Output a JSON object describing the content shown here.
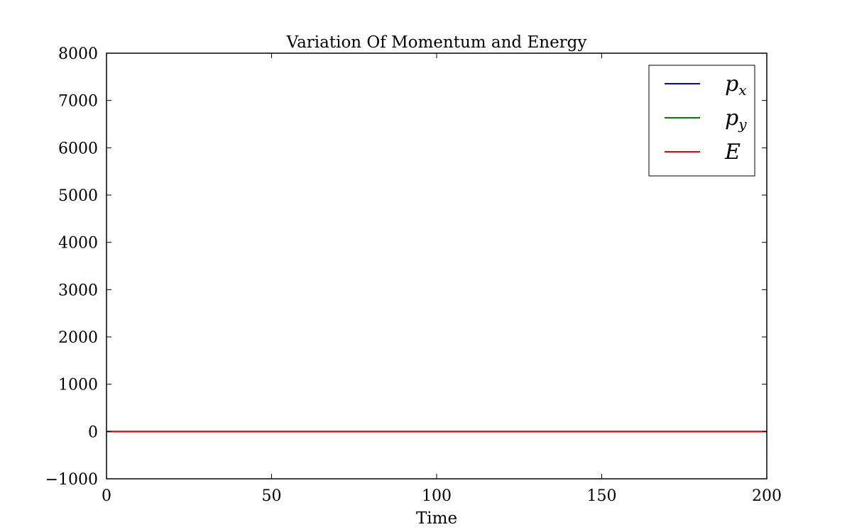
{
  "chart_data": {
    "type": "line",
    "title": "Variation Of Momentum and Energy",
    "xlabel": "Time",
    "ylabel": "",
    "xlim": [
      0,
      200
    ],
    "ylim": [
      -1000,
      8000
    ],
    "xticks": [
      0,
      50,
      100,
      150,
      200
    ],
    "xtick_labels": [
      "0",
      "50",
      "100",
      "150",
      "200"
    ],
    "yticks": [
      -1000,
      0,
      1000,
      2000,
      3000,
      4000,
      5000,
      6000,
      7000,
      8000
    ],
    "ytick_labels": [
      "−1000",
      "0",
      "1000",
      "2000",
      "3000",
      "4000",
      "5000",
      "6000",
      "7000",
      "8000"
    ],
    "grid": false,
    "legend_position": "top-right",
    "x": [
      0,
      200
    ],
    "series": [
      {
        "name": "p",
        "name_sub": "x",
        "color": "#0000ff",
        "values": [
          0,
          0
        ]
      },
      {
        "name": "p",
        "name_sub": "y",
        "color": "#008000",
        "values": [
          0,
          0
        ]
      },
      {
        "name": "E",
        "name_sub": "",
        "color": "#ff0000",
        "values": [
          0,
          0
        ]
      }
    ]
  }
}
